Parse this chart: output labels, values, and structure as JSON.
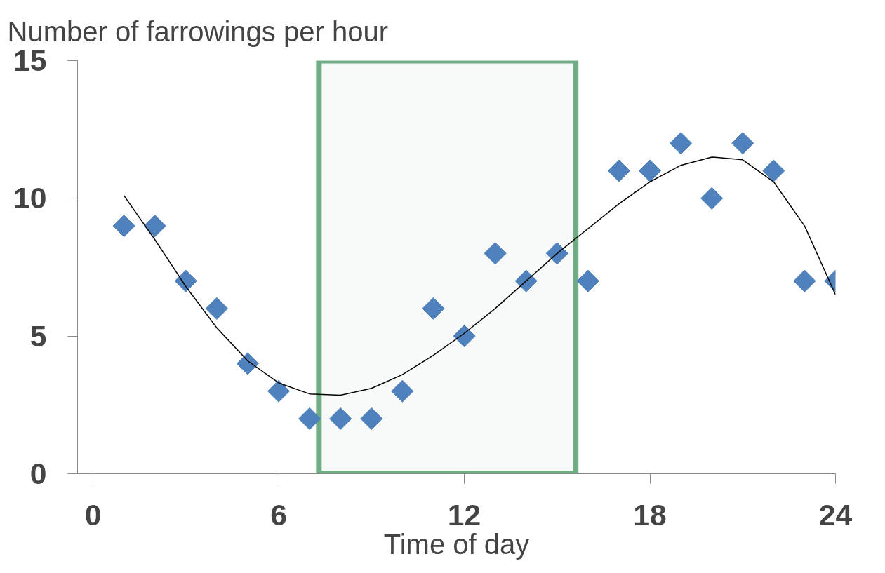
{
  "chart_data": {
    "type": "scatter",
    "title": "Number of farrowings per hour",
    "xlabel": "Time of day",
    "xlim": [
      -0.5,
      24
    ],
    "ylim": [
      0,
      15
    ],
    "xticks": [
      0,
      6,
      12,
      18,
      24
    ],
    "yticks": [
      0,
      5,
      10,
      15
    ],
    "grid": false,
    "marker": "diamond",
    "series": [
      {
        "type": "scatter",
        "color": "#4f81bd",
        "x": [
          1,
          2,
          3,
          4,
          5,
          6,
          7,
          8,
          9,
          10,
          11,
          12,
          13,
          14,
          15,
          16,
          17,
          18,
          19,
          20,
          21,
          22,
          23,
          24
        ],
        "values": [
          9,
          9,
          7,
          6,
          4,
          3,
          2,
          2,
          2,
          3,
          6,
          5,
          8,
          7,
          8,
          7,
          11,
          11,
          12,
          10,
          12,
          11,
          7,
          7
        ]
      },
      {
        "type": "line",
        "color": "#000000",
        "marker": "none",
        "x": [
          1,
          2,
          3,
          4,
          5,
          6,
          7,
          8,
          9,
          10,
          11,
          12,
          13,
          14,
          15,
          16,
          17,
          18,
          19,
          20,
          21,
          22,
          23,
          24
        ],
        "values": [
          10.1,
          8.5,
          6.8,
          5.3,
          4.1,
          3.3,
          2.9,
          2.85,
          3.1,
          3.6,
          4.3,
          5.1,
          6.0,
          7.0,
          8.0,
          8.9,
          9.8,
          10.6,
          11.2,
          11.5,
          11.4,
          10.6,
          9.0,
          6.5
        ]
      }
    ],
    "bands": [
      {
        "axis": "x",
        "from": 7.3,
        "to": 15.6,
        "color": "#70ad84"
      }
    ]
  }
}
